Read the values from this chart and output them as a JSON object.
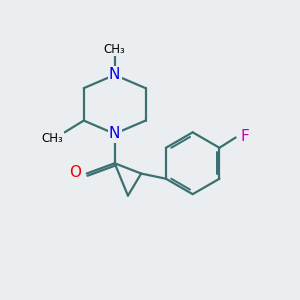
{
  "bg_color": "#eaeef0",
  "bond_color": "#3a7070",
  "N_color": "#0000ee",
  "O_color": "#ee0000",
  "F_color": "#cc00bb",
  "line_width": 1.6,
  "font_size": 10,
  "figsize": [
    3.0,
    3.0
  ],
  "dpi": 100,
  "xlim": [
    0,
    10
  ],
  "ylim": [
    0,
    10
  ]
}
